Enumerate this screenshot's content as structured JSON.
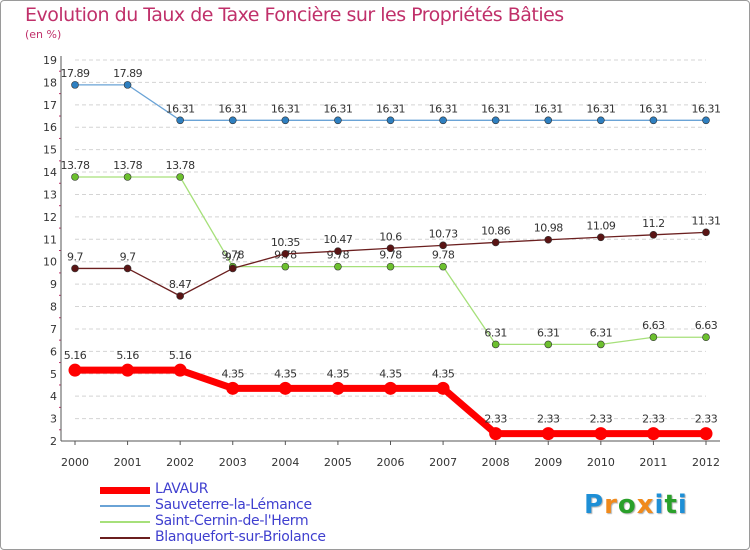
{
  "title": "Evolution du Taux de Taxe Foncière sur les Propriétés Bâties",
  "unit_label": "(en %)",
  "brand": {
    "letters": [
      "P",
      "r",
      "o",
      "x",
      "i",
      "t",
      "i"
    ],
    "colors": [
      "#1e8fd6",
      "#f08a1c",
      "#2aa02a",
      "#f08a1c",
      "#1e8fd6",
      "#2aa02a",
      "#1e8fd6"
    ]
  },
  "chart_data": {
    "type": "line",
    "x": [
      "2000",
      "2001",
      "2002",
      "2003",
      "2004",
      "2005",
      "2006",
      "2007",
      "2008",
      "2009",
      "2010",
      "2011",
      "2012"
    ],
    "ylim": [
      2,
      19
    ],
    "yticks": [
      "2",
      "3",
      "4",
      "5",
      "6",
      "7",
      "8",
      "9",
      "10",
      "11",
      "12",
      "13",
      "14",
      "15",
      "16",
      "17",
      "18",
      "19"
    ],
    "grid": "horizontal dashed",
    "legend_position": "bottom-left",
    "series": [
      {
        "name": "LAVAUR",
        "color": "#ff0000",
        "emphasis": true,
        "values": [
          5.16,
          5.16,
          5.16,
          4.35,
          4.35,
          4.35,
          4.35,
          4.35,
          2.33,
          2.33,
          2.33,
          2.33,
          2.33
        ],
        "labels": [
          "5.16",
          "5.16",
          "5.16",
          "4.35",
          "4.35",
          "4.35",
          "4.35",
          "4.35",
          "2.33",
          "2.33",
          "2.33",
          "2.33",
          "2.33"
        ]
      },
      {
        "name": "Sauveterre-la-Lémance",
        "color": "#6aa3d6",
        "marker": "#2e7fc0",
        "values": [
          17.89,
          17.89,
          16.31,
          16.31,
          16.31,
          16.31,
          16.31,
          16.31,
          16.31,
          16.31,
          16.31,
          16.31,
          16.31
        ],
        "labels": [
          "17.89",
          "17.89",
          "16.31",
          "16.31",
          "16.31",
          "16.31",
          "16.31",
          "16.31",
          "16.31",
          "16.31",
          "16.31",
          "16.31",
          "16.31"
        ]
      },
      {
        "name": "Saint-Cernin-de-l'Herm",
        "color": "#a6e07a",
        "marker": "#6cc02e",
        "values": [
          13.78,
          13.78,
          13.78,
          9.78,
          9.78,
          9.78,
          9.78,
          9.78,
          6.31,
          6.31,
          6.31,
          6.63,
          6.63
        ],
        "labels": [
          "13.78",
          "13.78",
          "13.78",
          "9.78",
          "9.78",
          "9.78",
          "9.78",
          "9.78",
          "6.31",
          "6.31",
          "6.31",
          "6.63",
          "6.63"
        ]
      },
      {
        "name": "Blanquefort-sur-Briolance",
        "color": "#6b1f1f",
        "marker": "#5a1414",
        "values": [
          9.7,
          9.7,
          8.47,
          9.7,
          10.35,
          10.47,
          10.6,
          10.73,
          10.86,
          10.98,
          11.09,
          11.2,
          11.31
        ],
        "labels": [
          "9.7",
          "9.7",
          "8.47",
          "9.7",
          "10.35",
          "10.47",
          "10.6",
          "10.73",
          "10.86",
          "10.98",
          "11.09",
          "11.2",
          "11.31"
        ]
      }
    ]
  }
}
